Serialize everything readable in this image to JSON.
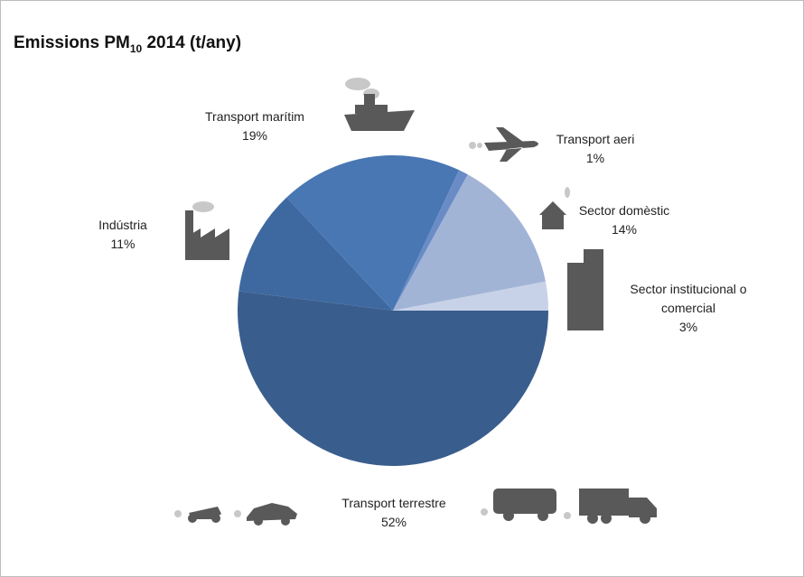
{
  "chart_data": {
    "type": "pie",
    "title": {
      "main": "Emissions PM",
      "subscript": "10",
      "suffix": "2014 (t/any)"
    },
    "categories": [
      "Transport terrestre",
      "Indústria",
      "Transport marítim",
      "Transport aeri",
      "Sector domèstic",
      "Sector institucional o comercial"
    ],
    "values": [
      52,
      11,
      19,
      1,
      14,
      3
    ],
    "value_labels": [
      "52%",
      "11%",
      "19%",
      "1%",
      "14%",
      "3%"
    ],
    "colors": [
      "#395d8d",
      "#3e69a0",
      "#4977b3",
      "#6a8cc6",
      "#a2b4d6",
      "#c7d2e8"
    ]
  }
}
